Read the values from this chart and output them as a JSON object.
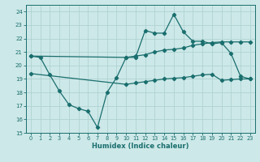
{
  "xlabel": "Humidex (Indice chaleur)",
  "bg_color": "#cde8e8",
  "grid_color": "#aacfcf",
  "line_color": "#1a6e6e",
  "xlim": [
    -0.5,
    23.5
  ],
  "ylim": [
    15,
    24.5
  ],
  "yticks": [
    15,
    16,
    17,
    18,
    19,
    20,
    21,
    22,
    23,
    24
  ],
  "xticks": [
    0,
    1,
    2,
    3,
    4,
    5,
    6,
    7,
    8,
    9,
    10,
    11,
    12,
    13,
    14,
    15,
    16,
    17,
    18,
    19,
    20,
    21,
    22,
    23
  ],
  "line1_x": [
    0,
    1,
    2,
    3,
    4,
    5,
    6,
    7,
    8,
    9,
    10,
    11,
    12,
    13,
    14,
    15,
    16,
    17,
    18,
    19,
    20,
    21,
    22,
    23
  ],
  "line1_y": [
    20.7,
    20.6,
    19.3,
    18.1,
    17.1,
    16.8,
    16.6,
    15.4,
    18.0,
    19.1,
    20.6,
    20.6,
    22.6,
    22.4,
    22.4,
    23.8,
    22.5,
    21.8,
    21.8,
    21.6,
    21.7,
    20.9,
    19.2,
    19.0
  ],
  "line2_x": [
    0,
    10,
    11,
    12,
    13,
    14,
    15,
    16,
    17,
    18,
    19,
    20,
    21,
    22,
    23
  ],
  "line2_y": [
    20.7,
    20.6,
    20.7,
    20.8,
    21.0,
    21.15,
    21.2,
    21.3,
    21.5,
    21.6,
    21.7,
    21.75,
    21.75,
    21.75,
    21.75
  ],
  "line3_x": [
    0,
    10,
    11,
    12,
    13,
    14,
    15,
    16,
    17,
    18,
    19,
    20,
    21,
    22,
    23
  ],
  "line3_y": [
    19.4,
    18.6,
    18.7,
    18.8,
    18.9,
    19.0,
    19.05,
    19.1,
    19.2,
    19.3,
    19.35,
    18.9,
    18.95,
    19.0,
    19.0
  ]
}
